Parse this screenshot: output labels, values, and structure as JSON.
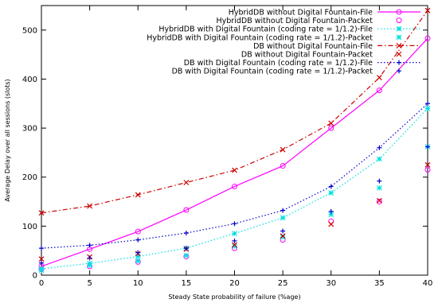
{
  "chart_data": {
    "type": "line",
    "xlabel": "Steady State probability of failure (%age)",
    "ylabel": "Average Delay over all sessions (slots)",
    "x": [
      0,
      5,
      10,
      15,
      20,
      25,
      30,
      35,
      40
    ],
    "xlim": [
      0,
      40
    ],
    "ylim": [
      0,
      550
    ],
    "xticks": [
      0,
      5,
      10,
      15,
      20,
      25,
      30,
      35,
      40
    ],
    "yticks": [
      0,
      100,
      200,
      300,
      400,
      500
    ],
    "grid": false,
    "legend_position": "top-right",
    "series": [
      {
        "name": "HybridDB without Digital Fountain-File",
        "color": "#ff00ff",
        "style": "solid",
        "marker": "circle",
        "values": [
          18,
          53,
          89,
          133,
          181,
          223,
          300,
          377,
          483
        ]
      },
      {
        "name": "HybridDB without Digital Fountain-Packet",
        "color": "#ff00ff",
        "style": "points",
        "marker": "circle",
        "values": [
          12,
          18,
          27,
          38,
          55,
          72,
          110,
          150,
          215
        ]
      },
      {
        "name": "HybridDB with Digital Fountain (coding rate = 1/1.2)-File",
        "color": "#00e0e0",
        "style": "dotted",
        "marker": "star",
        "values": [
          13,
          24,
          38,
          55,
          85,
          117,
          168,
          237,
          340
        ]
      },
      {
        "name": "HybridDB with Digital Fountain (coding rate = 1/1.2)-Packet",
        "color": "#00e0e0",
        "style": "points",
        "marker": "star",
        "values": [
          10,
          20,
          29,
          40,
          59,
          78,
          124,
          178,
          262
        ]
      },
      {
        "name": "DB without Digital Fountain-File",
        "color": "#cc0000",
        "style": "dashdot",
        "marker": "x",
        "values": [
          127,
          141,
          164,
          189,
          214,
          256,
          310,
          403,
          540
        ]
      },
      {
        "name": "DB without Digital Fountain-Packet",
        "color": "#cc0000",
        "style": "points",
        "marker": "x",
        "values": [
          33,
          37,
          44,
          53,
          62,
          80,
          104,
          152,
          225
        ]
      },
      {
        "name": "DB with Digital Fountain (coding rate = 1/1.2)-File",
        "color": "#0000cc",
        "style": "dotted",
        "marker": "plus",
        "values": [
          55,
          61,
          72,
          86,
          105,
          132,
          181,
          260,
          350
        ]
      },
      {
        "name": "DB with Digital Fountain (coding rate = 1/1.2)-Packet",
        "color": "#0000cc",
        "style": "points",
        "marker": "plus",
        "values": [
          25,
          35,
          46,
          55,
          70,
          90,
          130,
          192,
          262
        ]
      }
    ]
  }
}
